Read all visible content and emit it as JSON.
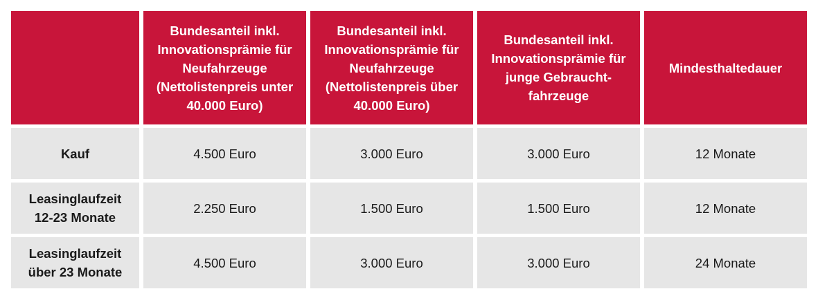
{
  "colors": {
    "header_bg": "#c8153a",
    "body_bg": "#e6e6e6",
    "header_text": "#ffffff",
    "body_text": "#1a1a1a"
  },
  "table": {
    "headers": [
      "",
      "Bundesanteil inkl.\nInnovationsprämie für\nNeufahrzeuge\n(Nettolistenpreis unter\n40.000 Euro)",
      "Bundesanteil inkl.\nInnovationsprämie für\nNeufahrzeuge\n(Nettolistenpreis über\n40.000 Euro)",
      "Bundesanteil inkl.\nInnovationsprämie für\njunge Gebraucht-\nfahrzeuge",
      "Mindesthaltedauer"
    ],
    "rows": [
      [
        "Kauf",
        "4.500 Euro",
        "3.000 Euro",
        "3.000 Euro",
        "12 Monate"
      ],
      [
        "Leasinglaufzeit\n12-23 Monate",
        "2.250 Euro",
        "1.500 Euro",
        "1.500 Euro",
        "12 Monate"
      ],
      [
        "Leasinglaufzeit\nüber 23 Monate",
        "4.500 Euro",
        "3.000 Euro",
        "3.000 Euro",
        "24 Monate"
      ]
    ]
  }
}
